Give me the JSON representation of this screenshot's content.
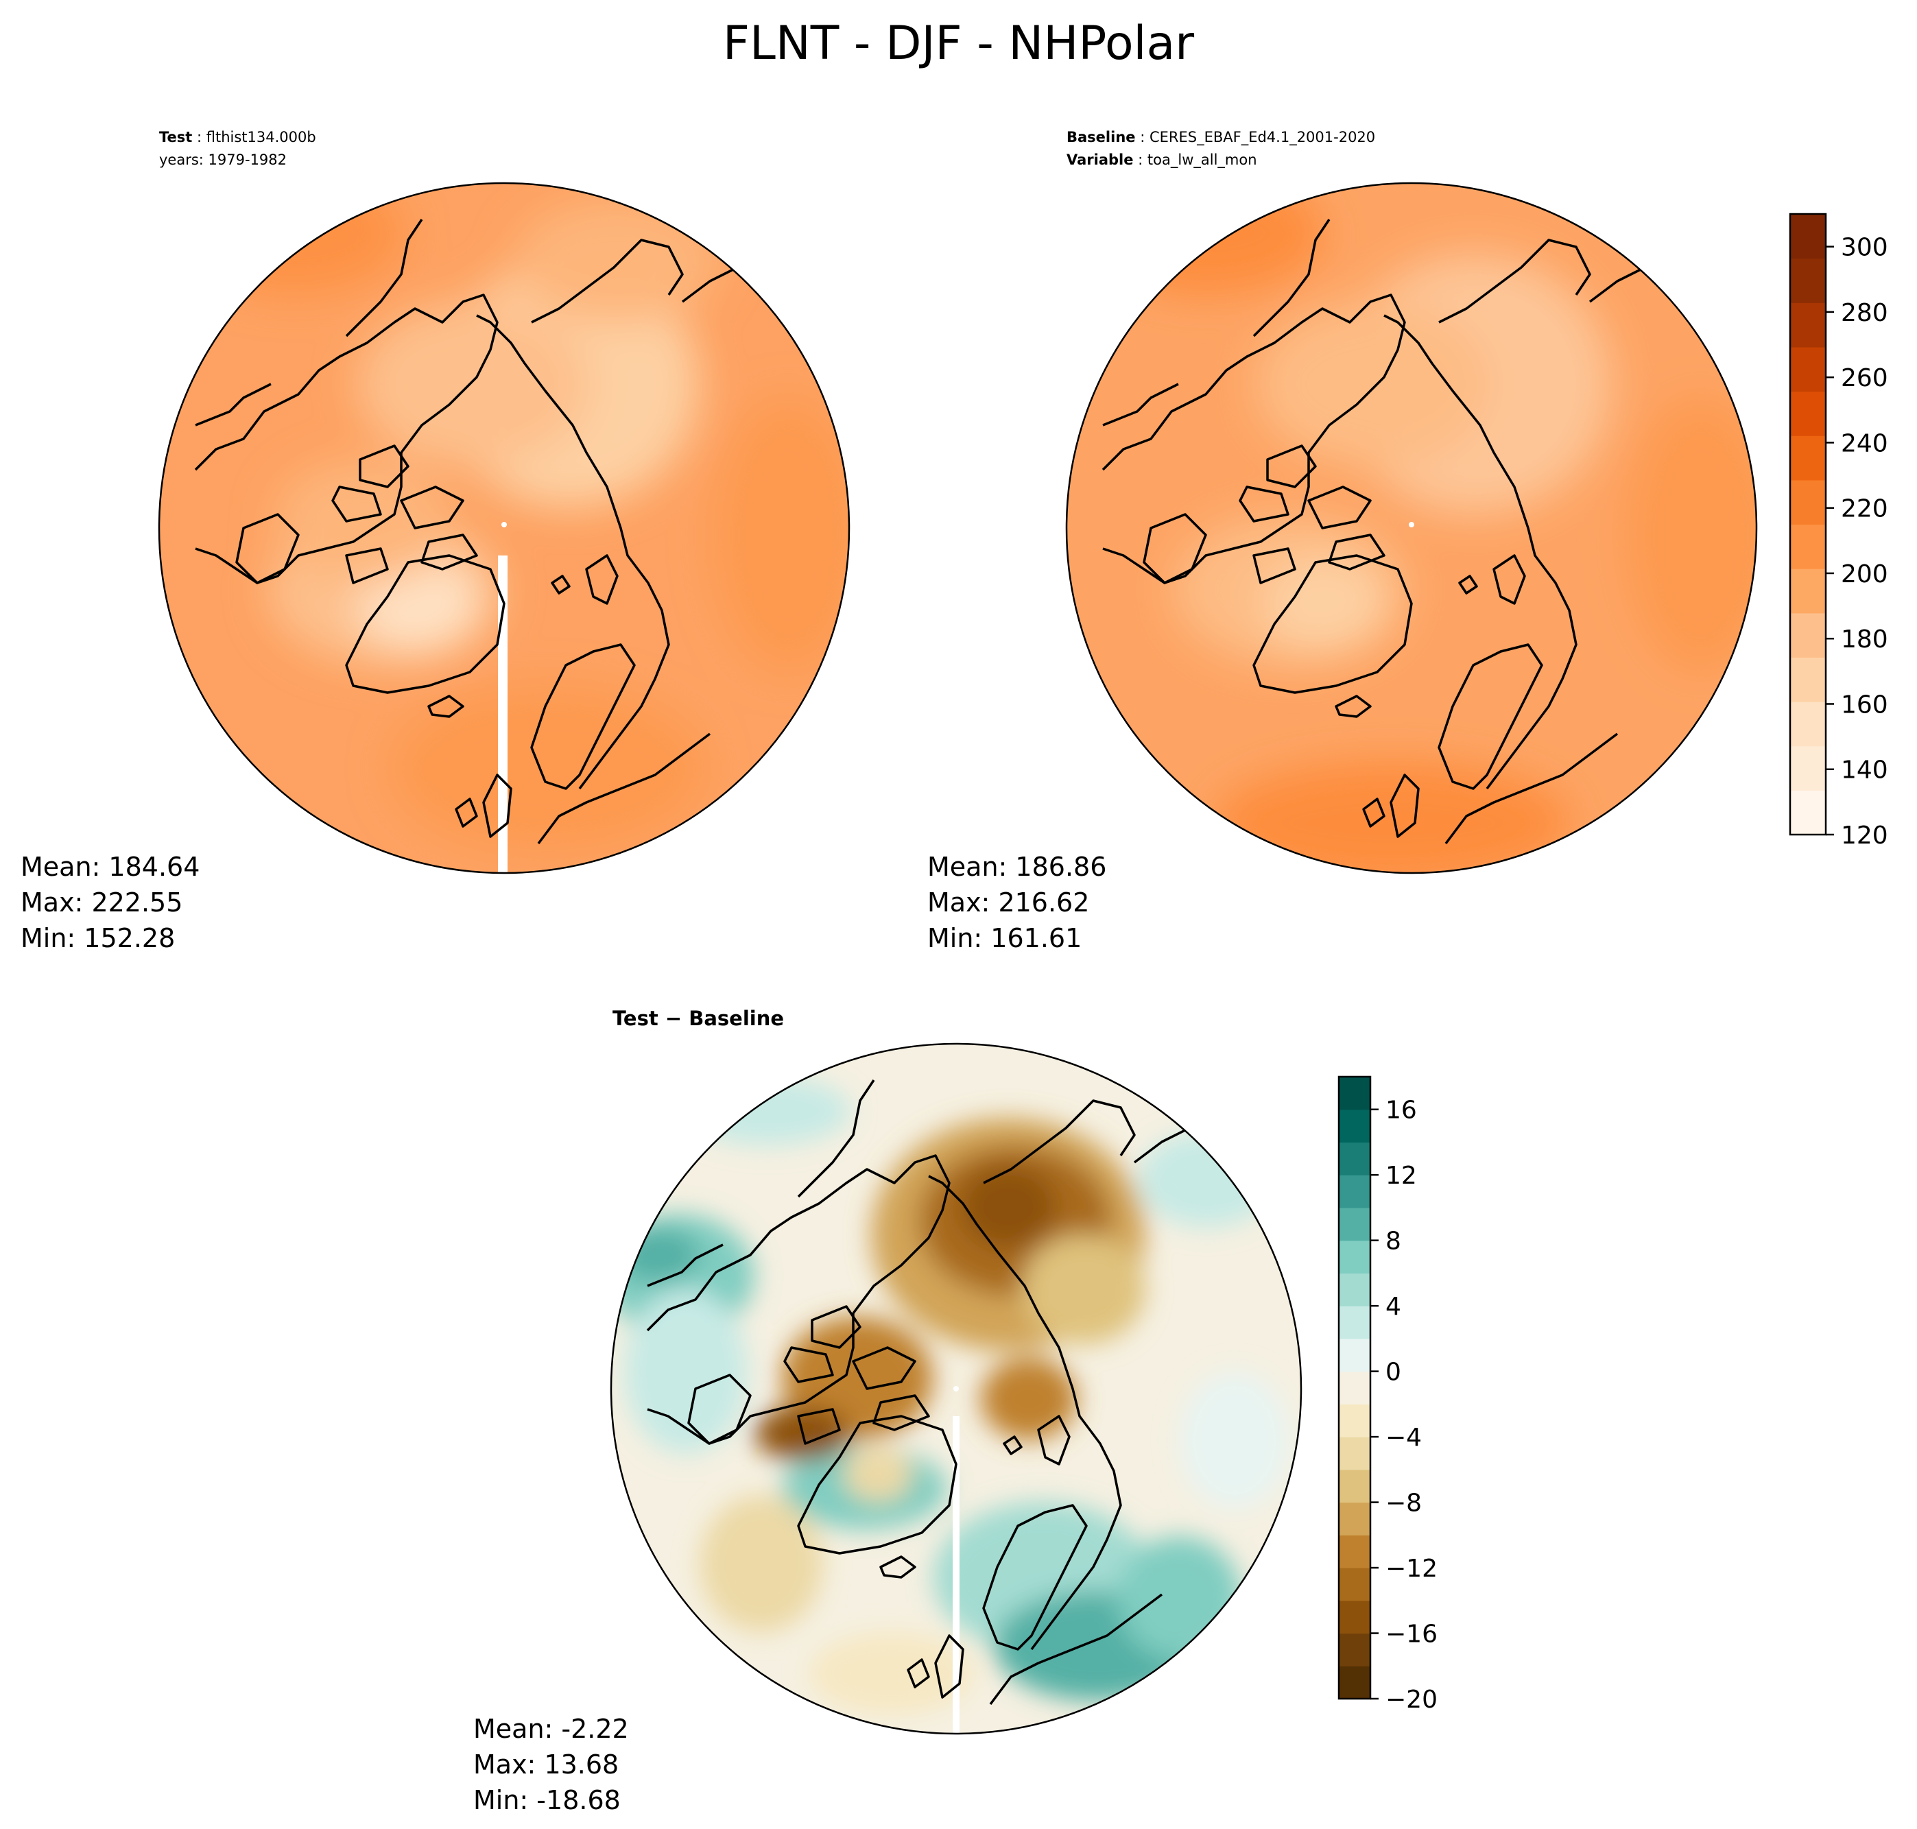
{
  "title": "FLNT - DJF - NHPolar",
  "panels": {
    "test": {
      "label": "Test",
      "name": "flthist134.000b",
      "years": "years: 1979-1982",
      "stats": {
        "mean": "Mean: 184.64",
        "max": "Max: 222.55",
        "min": "Min: 152.28"
      }
    },
    "baseline": {
      "label": "Baseline",
      "name": "CERES_EBAF_Ed4.1_2001-2020",
      "variable_label": "Variable",
      "variable": "toa_lw_all_mon",
      "stats": {
        "mean": "Mean: 186.86",
        "max": "Max: 216.62",
        "min": "Min: 161.61"
      }
    },
    "diff": {
      "title": "Test − Baseline",
      "stats": {
        "mean": "Mean: -2.22",
        "max": "Max: 13.68",
        "min": "Min: -18.68"
      }
    }
  },
  "colorbars": {
    "main": {
      "ticks": [
        "120",
        "140",
        "160",
        "180",
        "200",
        "220",
        "240",
        "260",
        "280",
        "300"
      ],
      "range": [
        120,
        310
      ],
      "colors": [
        "#fff5eb",
        "#feebd6",
        "#fee1c3",
        "#fdd2a6",
        "#fdc08c",
        "#fda863",
        "#fd9244",
        "#f77e2b",
        "#ee6511",
        "#de4f05",
        "#c74202",
        "#a93603",
        "#8c2d04",
        "#7f2704"
      ]
    },
    "diff": {
      "ticks": [
        "16",
        "12",
        "8",
        "4",
        "0",
        "−4",
        "−8",
        "−12",
        "−16",
        "−20"
      ],
      "range": [
        -20,
        18
      ],
      "colors": [
        "#543005",
        "#6f4009",
        "#8c510a",
        "#a86a1b",
        "#bf812d",
        "#d1a458",
        "#dfc27d",
        "#ecd9a6",
        "#f6e8c3",
        "#f5f0e1",
        "#e8f4f2",
        "#c7eae5",
        "#a3dbd1",
        "#80cdc1",
        "#54b0a5",
        "#35978f",
        "#1b7e76",
        "#01665e",
        "#00514a"
      ]
    }
  },
  "map_colors": {
    "test_base": "#fda262",
    "baseline_base": "#fda464",
    "diff_base": "#f5f0e1",
    "coast": "#000000"
  }
}
